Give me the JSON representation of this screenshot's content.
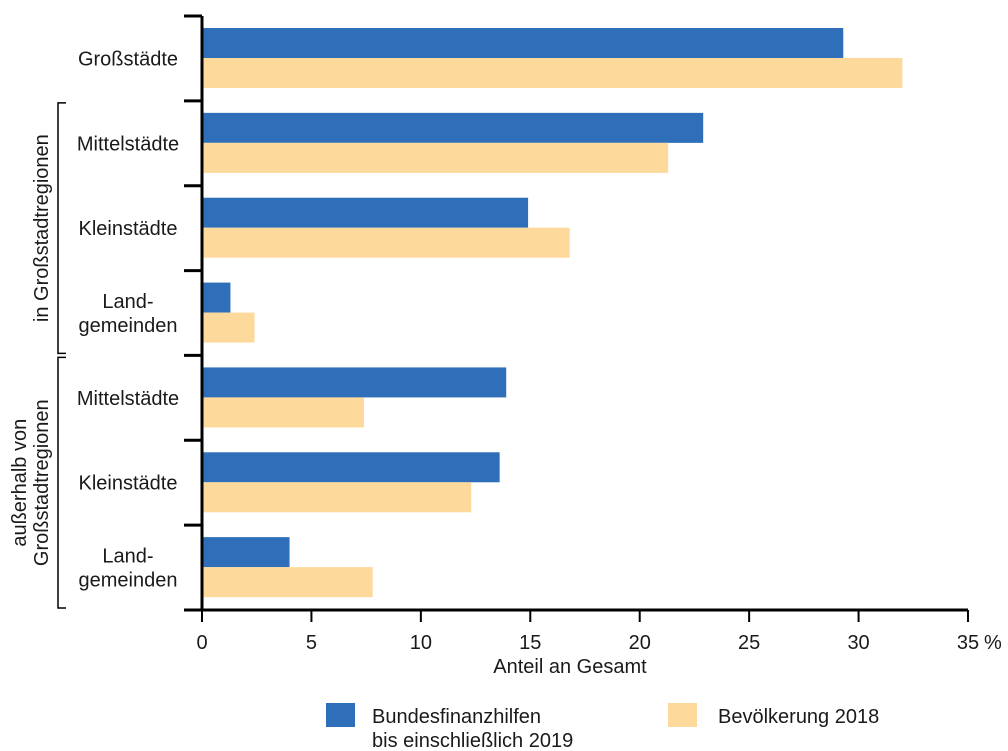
{
  "chart_data": {
    "type": "bar",
    "orientation": "horizontal",
    "categories": [
      [
        "Großstädte"
      ],
      [
        "Mittelstädte"
      ],
      [
        "Kleinstädte"
      ],
      [
        "Land-",
        "gemeinden"
      ],
      [
        "Mittelstädte"
      ],
      [
        "Kleinstädte"
      ],
      [
        "Land-",
        "gemeinden"
      ]
    ],
    "groups": [
      {
        "label": [
          "in Großstadtregionen"
        ],
        "categories": [
          1,
          3
        ]
      },
      {
        "label": [
          "außerhalb von",
          "Großstadtregionen"
        ],
        "categories": [
          4,
          6
        ]
      }
    ],
    "series": [
      {
        "name": [
          "Bundesfinanzhilfen",
          "bis einschließlich 2019"
        ],
        "color": "#2f6fba",
        "values": [
          29.3,
          22.9,
          14.9,
          1.3,
          13.9,
          13.6,
          4.0
        ]
      },
      {
        "name": [
          "Bevölkerung 2018"
        ],
        "color": "#fdd99b",
        "values": [
          32.0,
          21.3,
          16.8,
          2.4,
          7.4,
          12.3,
          7.8
        ]
      }
    ],
    "xlim": [
      0,
      35
    ],
    "xticks": [
      0,
      5,
      10,
      15,
      20,
      25,
      30,
      35
    ],
    "xtick_suffix_last": " %",
    "xlabel": "Anteil an Gesamt",
    "legend_position": "bottom"
  }
}
